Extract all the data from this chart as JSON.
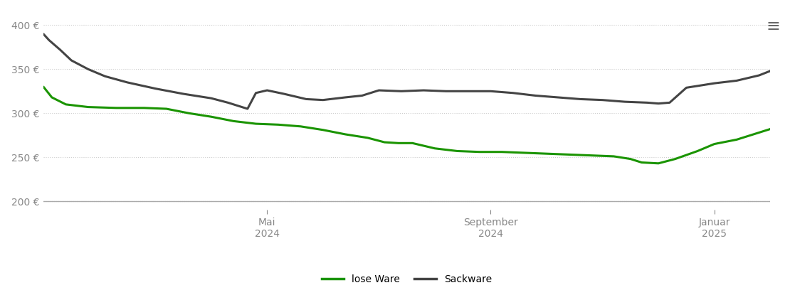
{
  "background_color": "#ffffff",
  "grid_color": "#cccccc",
  "yticks": [
    200,
    250,
    300,
    350,
    400
  ],
  "lose_ware_color": "#1a9400",
  "sackware_color": "#444444",
  "legend_lose": "lose Ware",
  "legend_sack": "Sackware",
  "lose_ware_x": [
    0,
    0.15,
    0.4,
    0.8,
    1.3,
    1.8,
    2.2,
    2.6,
    3.0,
    3.4,
    3.8,
    4.2,
    4.6,
    5.0,
    5.4,
    5.8,
    6.1,
    6.35,
    6.6,
    7.0,
    7.4,
    7.8,
    8.2,
    8.6,
    9.0,
    9.4,
    9.8,
    10.2,
    10.5,
    10.7,
    11.0,
    11.3,
    11.7,
    12.0,
    12.4,
    12.8,
    13.0
  ],
  "lose_ware_y": [
    330,
    318,
    310,
    307,
    306,
    306,
    305,
    300,
    296,
    291,
    288,
    287,
    285,
    281,
    276,
    272,
    267,
    266,
    266,
    260,
    257,
    256,
    256,
    255,
    254,
    253,
    252,
    251,
    248,
    244,
    243,
    248,
    257,
    265,
    270,
    278,
    282
  ],
  "sackware_x": [
    0,
    0.1,
    0.3,
    0.5,
    0.8,
    1.1,
    1.5,
    2.0,
    2.5,
    3.0,
    3.3,
    3.5,
    3.65,
    3.8,
    4.0,
    4.3,
    4.7,
    5.0,
    5.4,
    5.7,
    6.0,
    6.4,
    6.8,
    7.2,
    7.6,
    8.0,
    8.4,
    8.8,
    9.2,
    9.6,
    10.0,
    10.4,
    10.8,
    11.0,
    11.2,
    11.5,
    11.8,
    12.0,
    12.4,
    12.8,
    13.0
  ],
  "sackware_y": [
    390,
    383,
    372,
    360,
    350,
    342,
    335,
    328,
    322,
    317,
    312,
    308,
    305,
    323,
    326,
    322,
    316,
    315,
    318,
    320,
    326,
    325,
    326,
    325,
    325,
    325,
    323,
    320,
    318,
    316,
    315,
    313,
    312,
    311,
    312,
    329,
    332,
    334,
    337,
    343,
    348
  ],
  "xlim": [
    0,
    13.0
  ],
  "ylim": [
    190,
    415
  ],
  "menu_icon_color": "#666666",
  "line_width": 2.2,
  "bottom_line_color": "#aaaaaa",
  "tick_color": "#888888",
  "tick_fontsize": 10,
  "legend_fontsize": 10,
  "grid_linestyle": "dotted",
  "grid_linewidth": 0.8
}
